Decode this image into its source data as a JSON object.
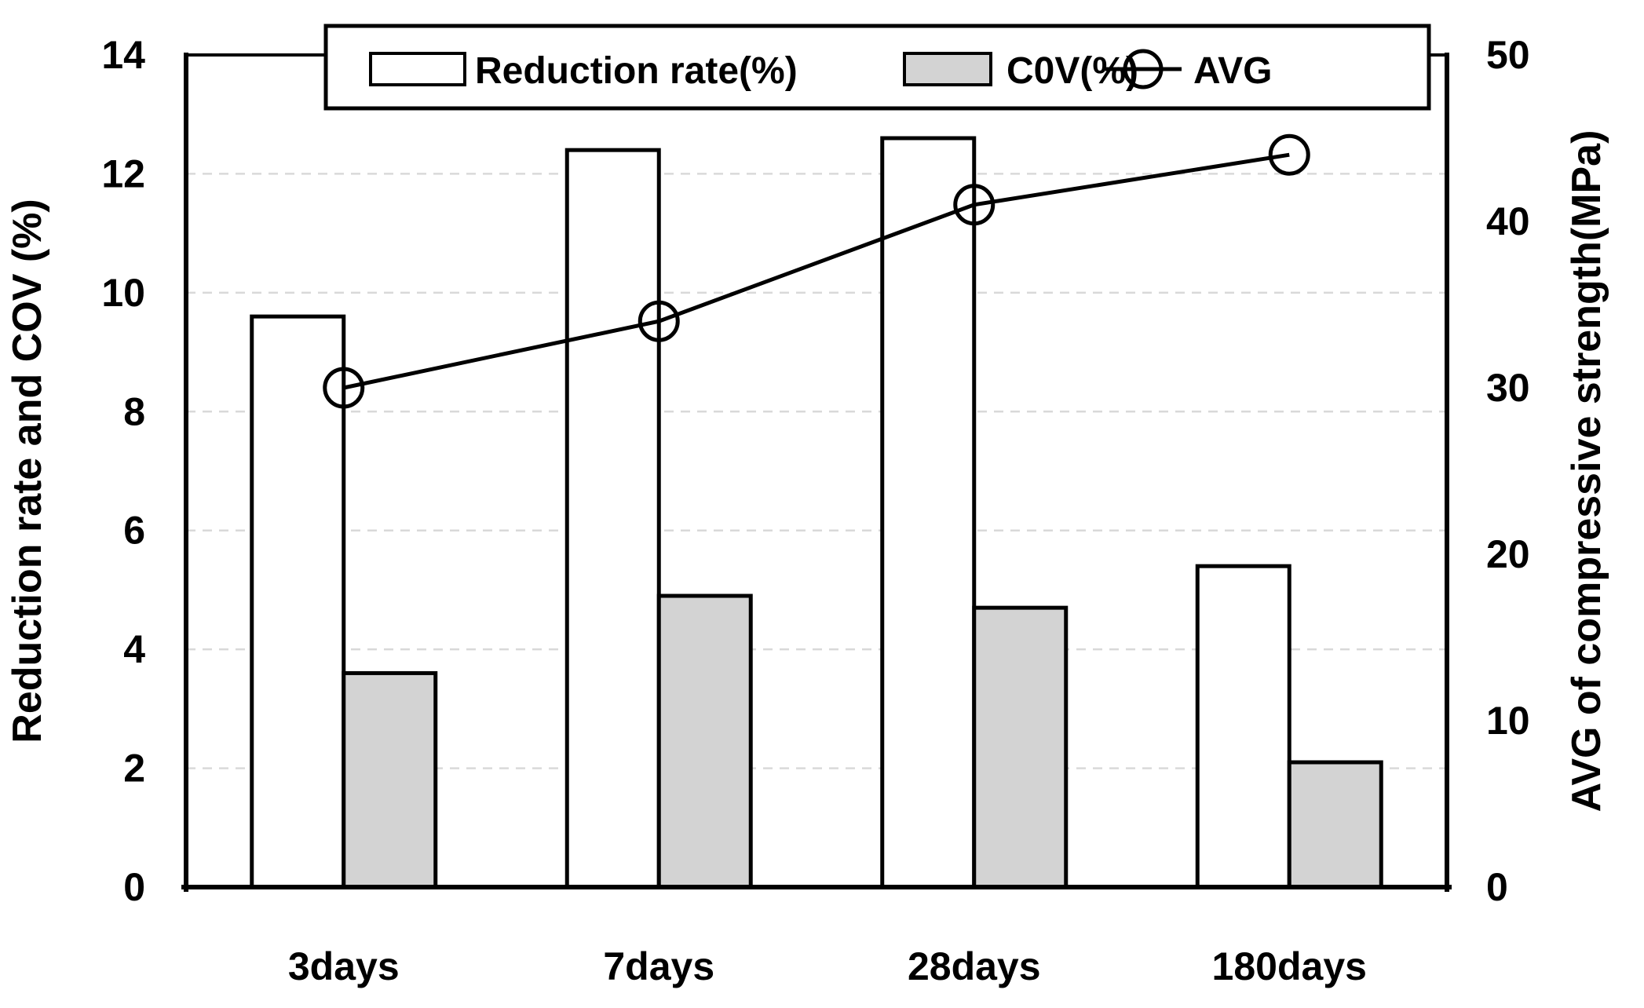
{
  "chart_data": {
    "type": "bar+line",
    "categories": [
      "3days",
      "7days",
      "28days",
      "180days"
    ],
    "series": [
      {
        "name": "Reduction rate(%)",
        "render": "bar",
        "axis": "left",
        "values": [
          9.6,
          12.4,
          12.6,
          5.4
        ],
        "fill": "#ffffff"
      },
      {
        "name": "C0V(%)",
        "render": "bar",
        "axis": "left",
        "values": [
          3.6,
          4.9,
          4.7,
          2.1
        ],
        "fill": "#d3d3d3"
      },
      {
        "name": "AVG",
        "render": "line",
        "axis": "right",
        "values": [
          30,
          34,
          41,
          44
        ],
        "marker": "open-circle",
        "color": "#000000"
      }
    ],
    "title": "",
    "xlabel": "",
    "ylabel_left": "Reduction rate and COV (%)",
    "ylabel_right": "AVG of compressive strength(MPa)",
    "ylim_left": [
      0,
      14
    ],
    "ytick_step_left": 2,
    "ylim_right": [
      0,
      50
    ],
    "ytick_step_right": 10,
    "legend": {
      "position": "top",
      "entries": [
        "Reduction rate(%)",
        "C0V(%)",
        "AVG"
      ]
    },
    "grid": {
      "horizontal": true,
      "style": "dashed",
      "color": "#d9d9d9"
    },
    "axis_color": "#000000",
    "background": "#ffffff"
  }
}
